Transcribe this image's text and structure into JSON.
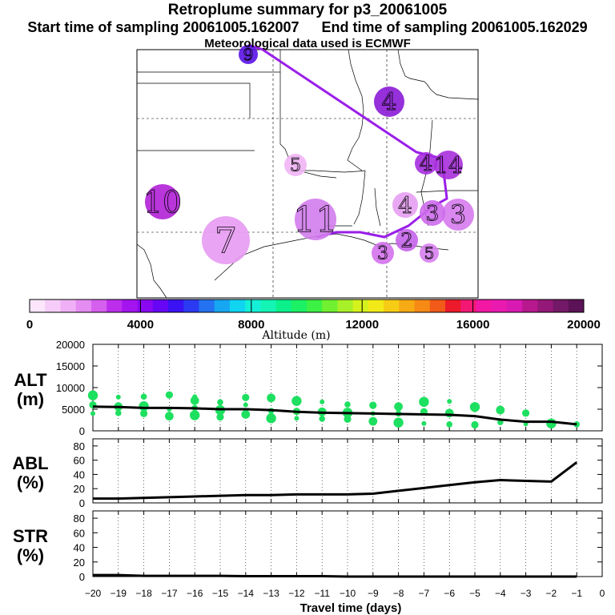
{
  "header": {
    "title": "Retroplume summary for p3_20061005",
    "start_time": "Start time of sampling 20061005.162007",
    "end_time": "End time of sampling 20061005.162029",
    "met_data": "Meteorological data used is ECMWF"
  },
  "map": {
    "path_color": "#9a1ee8",
    "plume_labels": [
      {
        "label": "9",
        "color": "#5a12e6"
      },
      {
        "label": "4",
        "color": "#8a1ad6"
      },
      {
        "label": "4",
        "color": "#a62ee0"
      },
      {
        "label": "14",
        "color": "#a82fdc"
      },
      {
        "label": "5",
        "color": "#efb4f4"
      },
      {
        "label": "10",
        "color": "#b020d6"
      },
      {
        "label": "7",
        "color": "#e79af2"
      },
      {
        "label": "11",
        "color": "#d27cec"
      },
      {
        "label": "4",
        "color": "#e59ef2"
      },
      {
        "label": "3",
        "color": "#d67aee"
      },
      {
        "label": "3",
        "color": "#cd6cec"
      },
      {
        "label": "2",
        "color": "#c564ea"
      },
      {
        "label": "3",
        "color": "#d472ee"
      },
      {
        "label": "5",
        "color": "#d780ee"
      }
    ]
  },
  "colorbar": {
    "ticks": [
      "0",
      "4000",
      "8000",
      "12000",
      "16000",
      "20000"
    ],
    "label": "Altitude (m)",
    "colors": [
      "#fbe6fb",
      "#f6cdf8",
      "#f0b0f6",
      "#e58cf2",
      "#d660ee",
      "#bd2eec",
      "#a414ee",
      "#8a08f2",
      "#6606f4",
      "#3a12f4",
      "#2b3af2",
      "#2472f0",
      "#17a6f2",
      "#10d4f0",
      "#14f0d8",
      "#14f4b4",
      "#0cf08c",
      "#1cf064",
      "#3cf044",
      "#70f030",
      "#a8f028",
      "#d6f21c",
      "#f2ea18",
      "#f6cc14",
      "#f6aa14",
      "#f68a14",
      "#f25a1a",
      "#ec1a2a",
      "#f21874",
      "#f218a4",
      "#ea1ab0",
      "#d81ab2",
      "#b8188e",
      "#941878",
      "#741868",
      "#5c1256"
    ]
  },
  "chart_data": [
    {
      "type": "scatter",
      "name": "ALT",
      "ylabel": "ALT\n(m)",
      "ylabel_line1": "ALT",
      "ylabel_line2": "(m)",
      "ylim": [
        0,
        20000
      ],
      "yticks": [
        "0",
        "5000",
        "10000",
        "15000",
        "20000"
      ],
      "line_color": "#000000",
      "point_color": "#1ee060",
      "x": [
        -20,
        -19,
        -18,
        -17,
        -16,
        -15,
        -14,
        -13,
        -12,
        -11,
        -10,
        -9,
        -8,
        -7,
        -6,
        -5,
        -4,
        -3,
        -2,
        -1
      ],
      "mean_altitude": [
        5600,
        5500,
        5300,
        5300,
        5200,
        5000,
        5000,
        4800,
        4400,
        4200,
        4100,
        4000,
        3900,
        3800,
        3700,
        3400,
        2600,
        2100,
        2100,
        1500
      ],
      "points": [
        [
          -20,
          4000
        ],
        [
          -20,
          6000
        ],
        [
          -20,
          8200
        ],
        [
          -19,
          4100
        ],
        [
          -19,
          5600
        ],
        [
          -19,
          7800
        ],
        [
          -18,
          4000
        ],
        [
          -18,
          5700
        ],
        [
          -18,
          7900
        ],
        [
          -17,
          3400
        ],
        [
          -17,
          5000
        ],
        [
          -17,
          8300
        ],
        [
          -16,
          3600
        ],
        [
          -16,
          5300
        ],
        [
          -16,
          7000
        ],
        [
          -16,
          7900
        ],
        [
          -15,
          3200
        ],
        [
          -15,
          4800
        ],
        [
          -15,
          6600
        ],
        [
          -14,
          3800
        ],
        [
          -14,
          6000
        ],
        [
          -14,
          7700
        ],
        [
          -13,
          2900
        ],
        [
          -13,
          4600
        ],
        [
          -13,
          7600
        ],
        [
          -12,
          2900
        ],
        [
          -12,
          4500
        ],
        [
          -12,
          6900
        ],
        [
          -11,
          2800
        ],
        [
          -11,
          4400
        ],
        [
          -11,
          6700
        ],
        [
          -10,
          2700
        ],
        [
          -10,
          4200
        ],
        [
          -10,
          6100
        ],
        [
          -9,
          2200
        ],
        [
          -9,
          4000
        ],
        [
          -9,
          5900
        ],
        [
          -8,
          1900
        ],
        [
          -8,
          4000
        ],
        [
          -8,
          5600
        ],
        [
          -7,
          1700
        ],
        [
          -7,
          4400
        ],
        [
          -7,
          6700
        ],
        [
          -6,
          1500
        ],
        [
          -6,
          4100
        ],
        [
          -6,
          6800
        ],
        [
          -5,
          1400
        ],
        [
          -5,
          5500
        ],
        [
          -4,
          2000
        ],
        [
          -4,
          4800
        ],
        [
          -3,
          1600
        ],
        [
          -3,
          4100
        ],
        [
          -2,
          1700
        ],
        [
          -1,
          1500
        ]
      ]
    },
    {
      "type": "line",
      "name": "ABL",
      "ylabel": "ABL\n(%)",
      "ylabel_line1": "ABL",
      "ylabel_line2": "(%)",
      "ylim": [
        0,
        90
      ],
      "yticks": [
        "0",
        "20",
        "40",
        "60",
        "80"
      ],
      "x": [
        -20,
        -19,
        -18,
        -17,
        -16,
        -15,
        -14,
        -13,
        -12,
        -11,
        -10,
        -9,
        -8,
        -7,
        -6,
        -5,
        -4,
        -3,
        -2,
        -1
      ],
      "values": [
        6,
        6,
        7,
        8,
        9,
        10,
        11,
        11,
        12,
        12,
        12,
        13,
        17,
        21,
        25,
        29,
        32,
        31,
        30,
        57
      ]
    },
    {
      "type": "line",
      "name": "STR",
      "ylabel": "STR\n(%)",
      "ylabel_line1": "STR",
      "ylabel_line2": "(%)",
      "ylim": [
        0,
        90
      ],
      "yticks": [
        "0",
        "20",
        "40",
        "60",
        "80"
      ],
      "x": [
        -20,
        -19,
        -18,
        -17,
        -16,
        -15,
        -14,
        -13,
        -12,
        -11,
        -10,
        -9,
        -8,
        -7,
        -6,
        -5,
        -4,
        -3,
        -2,
        -1
      ],
      "values": [
        2,
        2,
        1,
        1,
        1,
        1,
        0.5,
        0.5,
        0.5,
        0.5,
        0,
        0,
        0,
        0,
        0,
        0,
        0,
        0,
        0,
        0
      ]
    }
  ],
  "xaxis": {
    "label": "Travel time (days)",
    "ticks": [
      "−20",
      "−19",
      "−18",
      "−17",
      "−16",
      "−15",
      "−14",
      "−13",
      "−12",
      "−11",
      "−10",
      "−9",
      "−8",
      "−7",
      "−6",
      "−5",
      "−4",
      "−3",
      "−2",
      "−1",
      "0"
    ]
  }
}
